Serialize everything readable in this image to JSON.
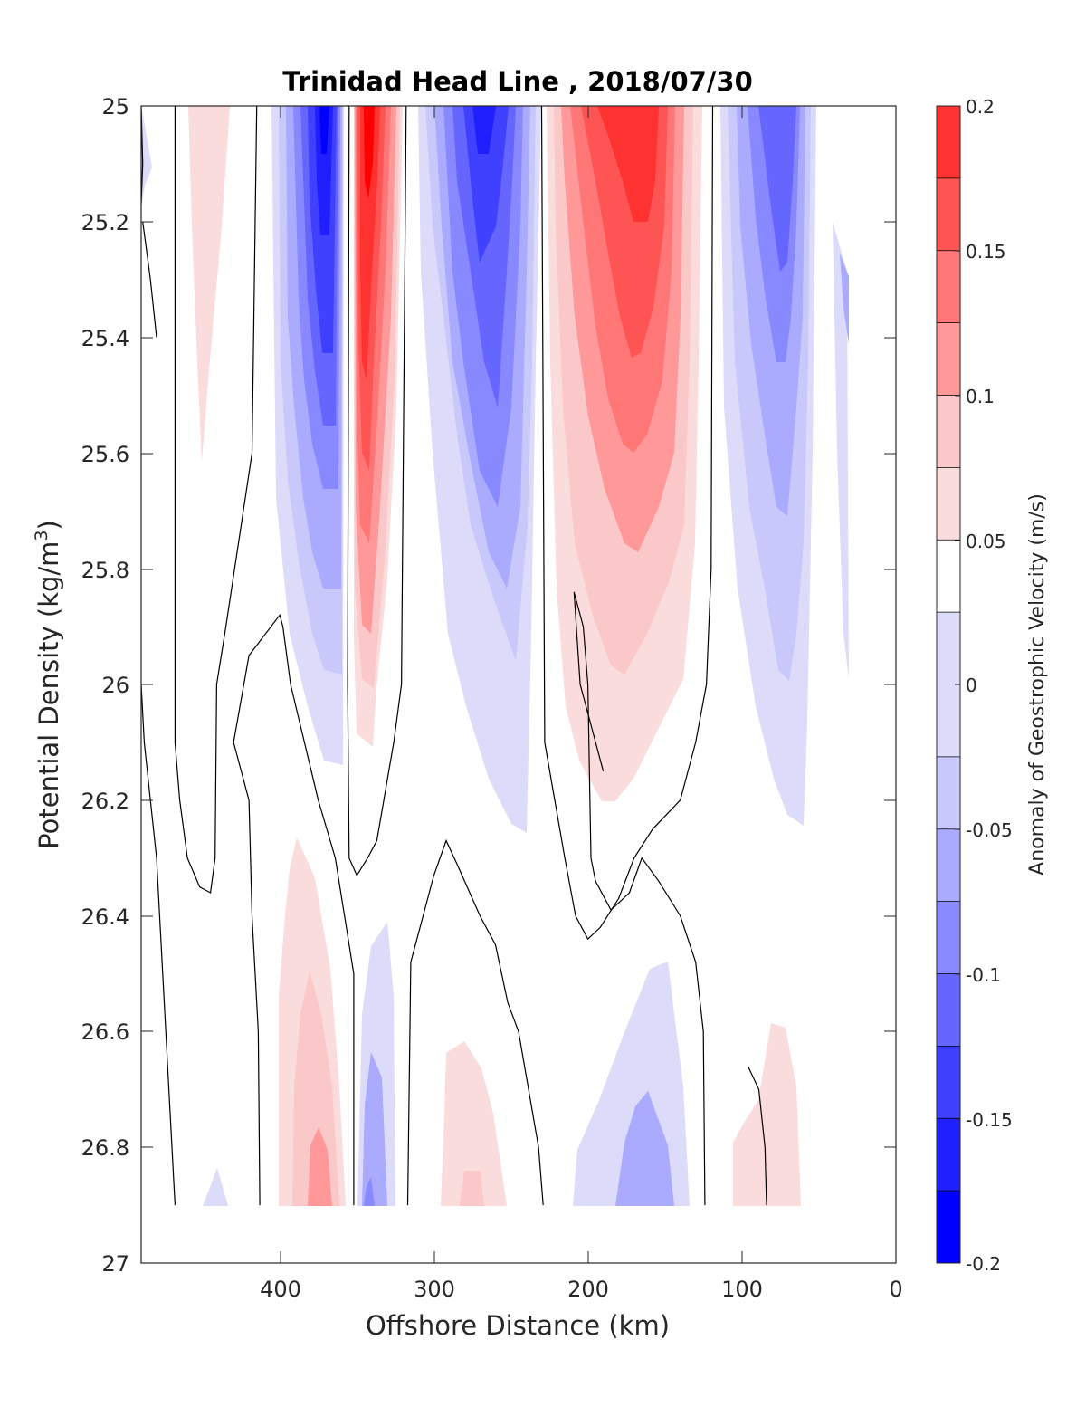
{
  "chart_data": {
    "type": "contourf",
    "title": "Trinidad Head Line , 2018/07/30",
    "xlabel": "Offshore Distance (km)",
    "ylabel_main": "Potential Density (kg/m",
    "ylabel_sup": "3",
    "ylabel_close": ")",
    "x_ticks": [
      "400",
      "300",
      "200",
      "100",
      "0"
    ],
    "y_ticks": [
      "25",
      "25.2",
      "25.4",
      "25.6",
      "25.8",
      "26",
      "26.2",
      "26.4",
      "26.6",
      "26.8",
      "27"
    ],
    "xlim": [
      490,
      0
    ],
    "ylim": [
      25,
      27
    ],
    "x_reversed": true,
    "y_reversed": true,
    "colorbar": {
      "label": "Anomaly of Geostrophic Velocity (m/s)",
      "ticks": [
        "0.2",
        "0.15",
        "0.1",
        "0.05",
        "0",
        "-0.05",
        "-0.1",
        "-0.15",
        "-0.2"
      ],
      "levels": [
        -0.2,
        -0.175,
        -0.15,
        -0.125,
        -0.1,
        -0.075,
        -0.05,
        -0.025,
        0.025,
        0.05,
        0.075,
        0.1,
        0.125,
        0.15,
        0.175,
        0.2
      ],
      "colors": [
        "#0000ff",
        "#2020ff",
        "#4040ff",
        "#6666ff",
        "#8888ff",
        "#aaaaff",
        "#c8c8fa",
        "#dcdcfa",
        "#ffffff",
        "#fadcdc",
        "#fac8c8",
        "#ff9898",
        "#ff7676",
        "#ff5454",
        "#ff3232",
        "#ff0000"
      ]
    },
    "zero_contours": [
      {
        "points": [
          [
            490,
            25.0
          ],
          [
            489,
            25.1
          ],
          [
            490,
            25.17
          ]
        ]
      },
      {
        "points": [
          [
            468,
            25.0
          ],
          [
            468,
            26.1
          ],
          [
            465,
            26.2
          ],
          [
            460,
            26.3
          ],
          [
            452,
            26.35
          ],
          [
            445,
            26.36
          ],
          [
            442,
            26.3
          ],
          [
            441,
            26.0
          ],
          [
            435,
            25.9
          ],
          [
            418,
            25.6
          ],
          [
            415,
            25.0
          ]
        ]
      },
      {
        "points": [
          [
            490,
            26.0
          ],
          [
            488,
            26.1
          ],
          [
            484,
            26.2
          ],
          [
            480,
            26.3
          ],
          [
            476,
            26.5
          ],
          [
            472,
            26.7
          ],
          [
            470,
            26.8
          ],
          [
            468,
            26.9
          ]
        ]
      },
      {
        "points": [
          [
            413,
            26.9
          ],
          [
            414,
            26.6
          ],
          [
            418,
            26.4
          ],
          [
            420,
            26.2
          ],
          [
            430,
            26.1
          ],
          [
            420,
            25.95
          ],
          [
            400,
            25.88
          ],
          [
            398,
            25.9
          ],
          [
            393,
            26.0
          ],
          [
            375,
            26.2
          ],
          [
            364,
            26.3
          ],
          [
            358,
            26.4
          ],
          [
            352,
            26.5
          ],
          [
            352,
            26.9
          ]
        ]
      },
      {
        "points": [
          [
            355,
            25.0
          ],
          [
            356,
            26.0
          ],
          [
            355,
            26.3
          ],
          [
            350,
            26.33
          ],
          [
            343,
            26.3
          ],
          [
            337,
            26.27
          ],
          [
            326,
            26.1
          ],
          [
            321,
            26.0
          ],
          [
            318,
            25.0
          ]
        ]
      },
      {
        "points": [
          [
            317,
            26.9
          ],
          [
            315,
            26.48
          ],
          [
            300,
            26.33
          ],
          [
            292,
            26.27
          ],
          [
            285,
            26.31
          ],
          [
            270,
            26.4
          ],
          [
            260,
            26.45
          ],
          [
            252,
            26.55
          ],
          [
            245,
            26.6
          ],
          [
            232,
            26.8
          ],
          [
            229,
            26.9
          ]
        ]
      },
      {
        "points": [
          [
            230,
            25.0
          ],
          [
            228,
            26.1
          ],
          [
            215,
            26.3
          ],
          [
            208,
            26.4
          ],
          [
            200,
            26.44
          ],
          [
            192,
            26.42
          ],
          [
            180,
            26.37
          ],
          [
            170,
            26.3
          ],
          [
            158,
            26.25
          ],
          [
            140,
            26.2
          ],
          [
            130,
            26.1
          ],
          [
            123,
            26.0
          ],
          [
            120,
            25.8
          ],
          [
            119,
            25.0
          ]
        ]
      },
      {
        "points": [
          [
            124,
            26.9
          ],
          [
            125,
            26.6
          ],
          [
            130,
            26.48
          ],
          [
            140,
            26.4
          ],
          [
            154,
            26.34
          ],
          [
            165,
            26.3
          ],
          [
            173,
            26.36
          ],
          [
            185,
            26.39
          ],
          [
            195,
            26.34
          ],
          [
            198,
            26.3
          ],
          [
            200,
            26.0
          ],
          [
            203,
            25.9
          ],
          [
            209,
            25.84
          ],
          [
            205,
            26.0
          ],
          [
            195,
            26.1
          ],
          [
            190,
            26.15
          ]
        ]
      },
      {
        "points": [
          [
            84,
            26.9
          ],
          [
            85,
            26.8
          ],
          [
            89,
            26.7
          ],
          [
            96,
            26.66
          ]
        ]
      },
      {
        "points": [
          [
            489,
            25.2
          ],
          [
            484,
            25.3
          ],
          [
            480,
            25.4
          ]
        ]
      }
    ]
  }
}
